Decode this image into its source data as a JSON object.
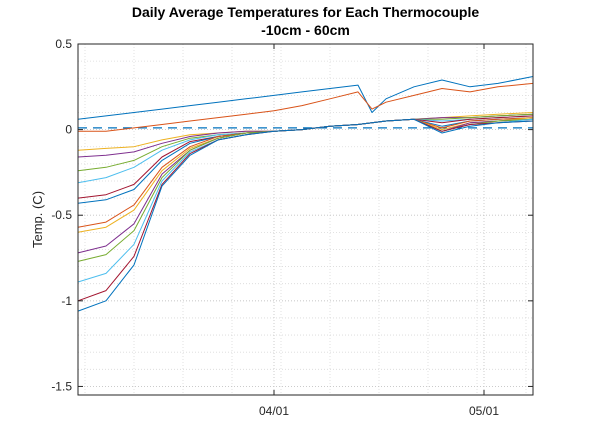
{
  "chart_data": {
    "type": "line",
    "title": "Daily Average Temperatures for Each Thermocouple",
    "subtitle": "-10cm - 60cm",
    "xlabel": "",
    "ylabel": "Temp. (C)",
    "ylim": [
      -1.55,
      0.5
    ],
    "xlim": [
      "2020-03-04",
      "2020-05-08"
    ],
    "yticks": [
      0.5,
      0,
      -0.5,
      -1,
      -1.5
    ],
    "ytick_labels": [
      "0.5",
      "0",
      "-0.5",
      "-1",
      "-1.5"
    ],
    "xticks": [
      "2020-04-01",
      "2020-05-01"
    ],
    "xtick_labels": [
      "04/01",
      "05/01"
    ],
    "grid": true,
    "minor_grid": true,
    "reference_line": {
      "y": 0.01,
      "color": "#0072BD",
      "style": "dashed"
    },
    "x": [
      "2020-03-04",
      "2020-03-08",
      "2020-03-12",
      "2020-03-16",
      "2020-03-20",
      "2020-03-24",
      "2020-03-28",
      "2020-04-01",
      "2020-04-05",
      "2020-04-09",
      "2020-04-13",
      "2020-04-15",
      "2020-04-17",
      "2020-04-21",
      "2020-04-25",
      "2020-04-29",
      "2020-05-03",
      "2020-05-08"
    ],
    "series": [
      {
        "color": "#0072BD",
        "values": [
          0.06,
          0.08,
          0.1,
          0.12,
          0.14,
          0.16,
          0.18,
          0.2,
          0.22,
          0.24,
          0.26,
          0.1,
          0.18,
          0.25,
          0.29,
          0.25,
          0.27,
          0.31
        ]
      },
      {
        "color": "#D95319",
        "values": [
          -0.01,
          -0.01,
          0.01,
          0.03,
          0.05,
          0.07,
          0.09,
          0.11,
          0.14,
          0.18,
          0.22,
          0.12,
          0.16,
          0.2,
          0.24,
          0.22,
          0.25,
          0.27
        ]
      },
      {
        "color": "#EDB120",
        "values": [
          -0.12,
          -0.11,
          -0.1,
          -0.06,
          -0.03,
          -0.02,
          -0.01,
          -0.01,
          0.0,
          0.02,
          0.03,
          0.04,
          0.05,
          0.06,
          0.07,
          0.08,
          0.09,
          0.1
        ]
      },
      {
        "color": "#7E2F8E",
        "values": [
          -0.16,
          -0.15,
          -0.13,
          -0.08,
          -0.04,
          -0.02,
          -0.01,
          -0.01,
          0.0,
          0.02,
          0.03,
          0.04,
          0.05,
          0.06,
          0.07,
          0.07,
          0.08,
          0.09
        ]
      },
      {
        "color": "#77AC30",
        "values": [
          -0.24,
          -0.22,
          -0.18,
          -0.1,
          -0.05,
          -0.03,
          -0.02,
          -0.01,
          0.0,
          0.02,
          0.03,
          0.04,
          0.05,
          0.06,
          0.06,
          0.07,
          0.08,
          0.09
        ]
      },
      {
        "color": "#4DBEEE",
        "values": [
          -0.31,
          -0.28,
          -0.22,
          -0.12,
          -0.06,
          -0.03,
          -0.02,
          -0.01,
          0.0,
          0.02,
          0.03,
          0.04,
          0.05,
          0.06,
          0.05,
          0.06,
          0.07,
          0.08
        ]
      },
      {
        "color": "#A2142F",
        "values": [
          -0.4,
          -0.38,
          -0.32,
          -0.16,
          -0.07,
          -0.04,
          -0.02,
          -0.01,
          0.0,
          0.02,
          0.03,
          0.04,
          0.05,
          0.06,
          0.04,
          0.06,
          0.07,
          0.08
        ]
      },
      {
        "color": "#0072BD",
        "values": [
          -0.43,
          -0.41,
          -0.35,
          -0.18,
          -0.08,
          -0.04,
          -0.02,
          -0.01,
          0.0,
          0.02,
          0.03,
          0.04,
          0.05,
          0.06,
          0.02,
          0.05,
          0.06,
          0.07
        ]
      },
      {
        "color": "#D95319",
        "values": [
          -0.57,
          -0.54,
          -0.44,
          -0.22,
          -0.1,
          -0.04,
          -0.02,
          -0.01,
          0.0,
          0.02,
          0.03,
          0.04,
          0.05,
          0.06,
          0.01,
          0.05,
          0.06,
          0.07
        ]
      },
      {
        "color": "#EDB120",
        "values": [
          -0.6,
          -0.57,
          -0.47,
          -0.24,
          -0.11,
          -0.05,
          -0.02,
          -0.01,
          0.0,
          0.02,
          0.03,
          0.04,
          0.05,
          0.06,
          0.0,
          0.04,
          0.05,
          0.07
        ]
      },
      {
        "color": "#7E2F8E",
        "values": [
          -0.72,
          -0.68,
          -0.55,
          -0.26,
          -0.12,
          -0.05,
          -0.02,
          -0.01,
          0.0,
          0.02,
          0.03,
          0.04,
          0.05,
          0.06,
          -0.01,
          0.04,
          0.05,
          0.06
        ]
      },
      {
        "color": "#77AC30",
        "values": [
          -0.77,
          -0.73,
          -0.59,
          -0.28,
          -0.12,
          -0.05,
          -0.02,
          -0.01,
          0.0,
          0.02,
          0.03,
          0.04,
          0.05,
          0.06,
          -0.01,
          0.03,
          0.05,
          0.06
        ]
      },
      {
        "color": "#4DBEEE",
        "values": [
          -0.89,
          -0.84,
          -0.67,
          -0.3,
          -0.13,
          -0.06,
          -0.03,
          -0.01,
          0.0,
          0.02,
          0.03,
          0.04,
          0.05,
          0.06,
          -0.01,
          0.03,
          0.04,
          0.06
        ]
      },
      {
        "color": "#A2142F",
        "values": [
          -1.0,
          -0.94,
          -0.74,
          -0.32,
          -0.14,
          -0.06,
          -0.03,
          -0.01,
          0.0,
          0.02,
          0.03,
          0.04,
          0.05,
          0.06,
          -0.01,
          0.03,
          0.04,
          0.05
        ]
      },
      {
        "color": "#0072BD",
        "values": [
          -1.06,
          -1.0,
          -0.79,
          -0.33,
          -0.15,
          -0.06,
          -0.03,
          -0.01,
          0.0,
          0.02,
          0.03,
          0.04,
          0.05,
          0.06,
          -0.02,
          0.02,
          0.04,
          0.05
        ]
      }
    ]
  }
}
